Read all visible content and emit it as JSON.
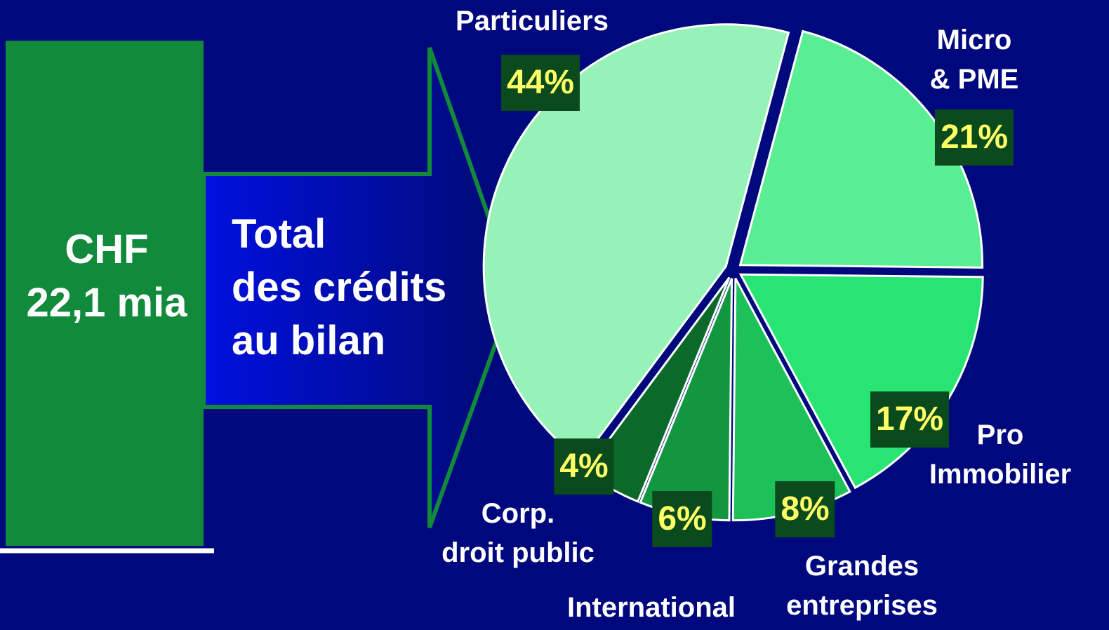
{
  "chart_data": {
    "type": "pie",
    "categories": [
      "Micro\n& PME",
      "Pro\nImmobilier",
      "Grandes\nentreprises",
      "International",
      "Corp.\ndroit public",
      "Particuliers"
    ],
    "values": [
      21,
      17,
      8,
      6,
      4,
      44
    ],
    "value_labels": [
      "21%",
      "17%",
      "8%",
      "6%",
      "4%",
      "44%"
    ],
    "colors": [
      "#5aee94",
      "#28e472",
      "#1ec05a",
      "#139640",
      "#0b6a2a",
      "#96f2b8"
    ],
    "annotations": [
      "CHF\n22,1 mia",
      "Total\ndes crédits\nau bilan"
    ]
  }
}
